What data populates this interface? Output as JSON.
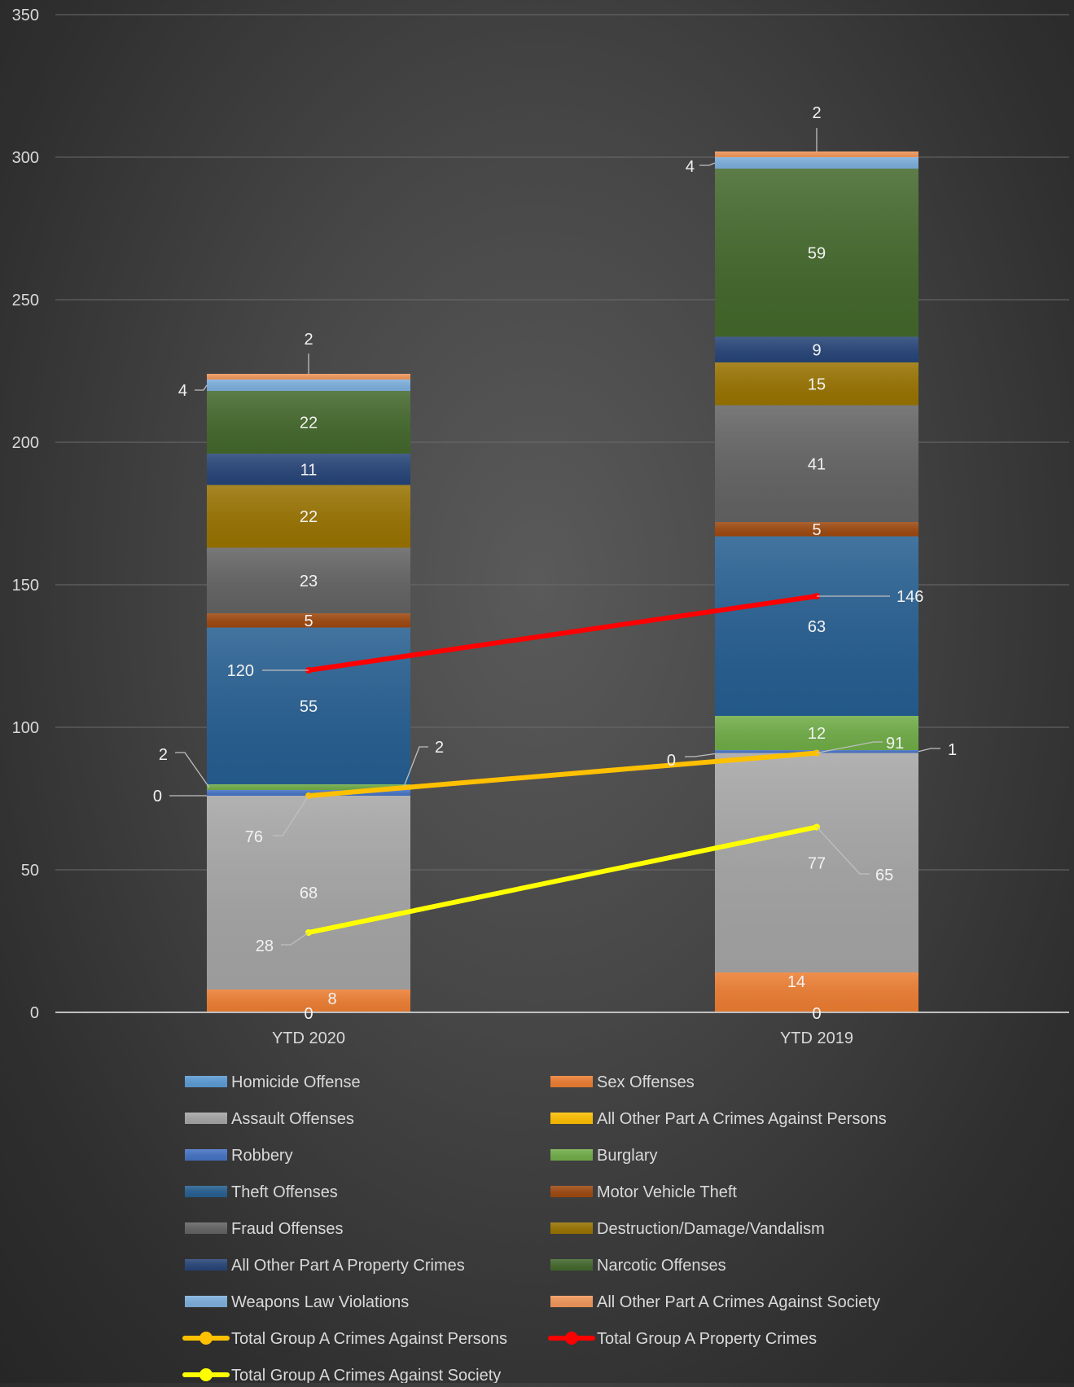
{
  "chart_data": {
    "type": "bar",
    "stacked": true,
    "title": "",
    "xlabel": "",
    "ylabel": "",
    "ylim": [
      0,
      350
    ],
    "yticks": [
      0,
      50,
      100,
      150,
      200,
      250,
      300,
      350
    ],
    "grid": true,
    "legend_position": "bottom",
    "categories": [
      "YTD 2020",
      "YTD 2019"
    ],
    "series": [
      {
        "name": "Sex Offenses",
        "color": "#ED7D31",
        "values": [
          8,
          14
        ]
      },
      {
        "name": "Homicide Offense",
        "color": "#5B9BD5",
        "values": [
          0,
          0
        ]
      },
      {
        "name": "Assault Offenses",
        "color": "#A5A5A5",
        "values": [
          68,
          77
        ]
      },
      {
        "name": "All Other Part A Crimes Against Persons",
        "color": "#FFC000",
        "values": [
          0,
          0
        ]
      },
      {
        "name": "Robbery",
        "color": "#4472C4",
        "values": [
          2,
          1
        ]
      },
      {
        "name": "Burglary",
        "color": "#70AD47",
        "values": [
          2,
          12
        ]
      },
      {
        "name": "Theft Offenses",
        "color": "#255E91",
        "values": [
          55,
          63
        ]
      },
      {
        "name": "Motor Vehicle Theft",
        "color": "#9E480E",
        "values": [
          5,
          5
        ]
      },
      {
        "name": "Fraud Offenses",
        "color": "#636363",
        "values": [
          23,
          41
        ]
      },
      {
        "name": "Destruction/Damage/Vandalism",
        "color": "#997300",
        "values": [
          22,
          15
        ]
      },
      {
        "name": "All Other Part A Property Crimes",
        "color": "#264478",
        "values": [
          11,
          9
        ]
      },
      {
        "name": "Narcotic Offenses",
        "color": "#43682B",
        "values": [
          22,
          59
        ]
      },
      {
        "name": "Weapons Law Violations",
        "color": "#7CAFDD",
        "values": [
          4,
          4
        ]
      },
      {
        "name": "All Other Part A Crimes Against Society",
        "color": "#F1975A",
        "values": [
          2,
          2
        ]
      }
    ],
    "lines": [
      {
        "name": "Total Group A Crimes Against Persons",
        "color": "#FFC000",
        "values": [
          76,
          91
        ]
      },
      {
        "name": "Total Group A Property Crimes",
        "color": "#FF0000",
        "values": [
          120,
          146
        ]
      },
      {
        "name": "Total Group A Crimes Against Society",
        "color": "#FFFF00",
        "values": [
          28,
          65
        ]
      }
    ],
    "legend": [
      {
        "label": "Homicide Offense",
        "kind": "bar",
        "color": "#5B9BD5"
      },
      {
        "label": "Sex Offenses",
        "kind": "bar",
        "color": "#ED7D31"
      },
      {
        "label": "Assault Offenses",
        "kind": "bar",
        "color": "#A5A5A5"
      },
      {
        "label": "All Other Part A Crimes Against Persons",
        "kind": "bar",
        "color": "#FFC000"
      },
      {
        "label": "Robbery",
        "kind": "bar",
        "color": "#4472C4"
      },
      {
        "label": "Burglary",
        "kind": "bar",
        "color": "#70AD47"
      },
      {
        "label": "Theft Offenses",
        "kind": "bar",
        "color": "#255E91"
      },
      {
        "label": "Motor Vehicle Theft",
        "kind": "bar",
        "color": "#9E480E"
      },
      {
        "label": "Fraud Offenses",
        "kind": "bar",
        "color": "#636363"
      },
      {
        "label": "Destruction/Damage/Vandalism",
        "kind": "bar",
        "color": "#997300"
      },
      {
        "label": "All Other Part A Property Crimes",
        "kind": "bar",
        "color": "#264478"
      },
      {
        "label": "Narcotic Offenses",
        "kind": "bar",
        "color": "#43682B"
      },
      {
        "label": "Weapons Law Violations",
        "kind": "bar",
        "color": "#7CAFDD"
      },
      {
        "label": "All Other Part A Crimes Against Society",
        "kind": "bar",
        "color": "#F1975A"
      },
      {
        "label": "Total Group A Crimes Against Persons",
        "kind": "line",
        "color": "#FFC000"
      },
      {
        "label": "Total Group A Property Crimes",
        "kind": "line",
        "color": "#FF0000"
      },
      {
        "label": "Total Group A Crimes Against Society",
        "kind": "line",
        "color": "#FFFF00"
      }
    ]
  }
}
